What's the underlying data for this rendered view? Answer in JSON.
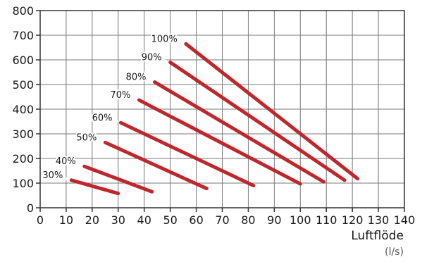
{
  "chart_data": {
    "type": "line",
    "title": "",
    "xlabel": "Luftflöde",
    "xunit": "(l/s)",
    "ylabel": "",
    "xlim": [
      0,
      140
    ],
    "ylim": [
      0,
      800
    ],
    "xticks": [
      0,
      10,
      20,
      30,
      40,
      50,
      60,
      70,
      80,
      90,
      100,
      110,
      120,
      130,
      140
    ],
    "yticks": [
      0,
      100,
      200,
      300,
      400,
      500,
      600,
      700,
      800
    ],
    "grid": true,
    "line_color": "#c0272d",
    "series": [
      {
        "name": "30%",
        "x": [
          12,
          30
        ],
        "y": [
          112,
          58
        ]
      },
      {
        "name": "40%",
        "x": [
          17,
          43
        ],
        "y": [
          168,
          65
        ]
      },
      {
        "name": "50%",
        "x": [
          25,
          64
        ],
        "y": [
          265,
          78
        ]
      },
      {
        "name": "60%",
        "x": [
          31,
          82
        ],
        "y": [
          345,
          90
        ]
      },
      {
        "name": "70%",
        "x": [
          38,
          100
        ],
        "y": [
          437,
          97
        ]
      },
      {
        "name": "80%",
        "x": [
          44,
          109
        ],
        "y": [
          510,
          105
        ]
      },
      {
        "name": "90%",
        "x": [
          50,
          117
        ],
        "y": [
          590,
          112
        ]
      },
      {
        "name": "100%",
        "x": [
          56,
          122
        ],
        "y": [
          665,
          118
        ]
      }
    ]
  }
}
